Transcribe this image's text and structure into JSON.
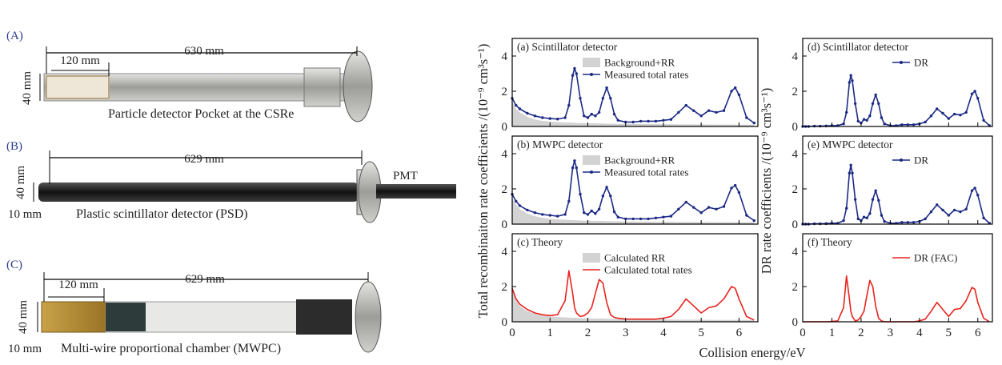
{
  "photos": {
    "a": {
      "label": "(A)",
      "length": "630 mm",
      "window": "120 mm",
      "height": "40 mm",
      "caption": "Particle detector Pocket at the CSRe"
    },
    "b": {
      "label": "(B)",
      "length": "629 mm",
      "height": "40 mm",
      "thickness": "10 mm",
      "pmt": "PMT",
      "caption": "Plastic scintillator detector (PSD)"
    },
    "c": {
      "label": "(C)",
      "window": "120 mm",
      "length": "629 mm",
      "height": "40 mm",
      "thickness": "10 mm",
      "caption": "Multi-wire proportional chamber (MWPC)"
    }
  },
  "shared_axes": {
    "y_left": "Total recombinaiton rate coefficients /(10⁻⁹ cm³s⁻¹)",
    "y_right": "DR rate coefficients /(10⁻⁹ cm³s⁻¹)",
    "x": "Collision energy/eV"
  },
  "chart_data": [
    {
      "type": "line",
      "label": "(a) Scintillator detector",
      "x": [
        0,
        0.1,
        0.2,
        0.4,
        0.6,
        0.8,
        1,
        1.2,
        1.4,
        1.5,
        1.6,
        1.65,
        1.7,
        1.8,
        1.9,
        2,
        2.1,
        2.2,
        2.3,
        2.4,
        2.5,
        2.6,
        2.7,
        2.8,
        3,
        3.2,
        3.4,
        3.6,
        3.8,
        4,
        4.2,
        4.4,
        4.6,
        4.8,
        5,
        5.2,
        5.4,
        5.6,
        5.8,
        5.9,
        6,
        6.2,
        6.4
      ],
      "series": [
        {
          "name": "Background+RR",
          "style": "area",
          "color": "#d3d3d3",
          "values": [
            1.4,
            1.0,
            0.8,
            0.55,
            0.4,
            0.32,
            0.28,
            0.25,
            0.23,
            0.22,
            0.21,
            0.21,
            0.2,
            0.2,
            0.19,
            0.19,
            0.18,
            0.18,
            0.17,
            0.17,
            0.16,
            0.16,
            0.16,
            0.15,
            0.15,
            0.14,
            0.14,
            0.14,
            0.13,
            0.13,
            0.13,
            0.12,
            0.12,
            0.12,
            0.12,
            0.11,
            0.11,
            0.11,
            0.11,
            0.11,
            0.1,
            0.1,
            0.1
          ]
        },
        {
          "name": "Measured total rates",
          "style": "line",
          "markers": true,
          "color": "#1c2a85",
          "values": [
            1.6,
            1.2,
            1.0,
            0.75,
            0.6,
            0.5,
            0.45,
            0.42,
            0.5,
            1.2,
            2.9,
            3.3,
            3.0,
            1.6,
            0.6,
            0.5,
            0.7,
            0.6,
            0.8,
            1.6,
            2.2,
            1.6,
            0.7,
            0.35,
            0.25,
            0.25,
            0.3,
            0.3,
            0.3,
            0.35,
            0.4,
            0.8,
            1.2,
            0.9,
            0.6,
            0.9,
            0.8,
            0.9,
            2.0,
            2.2,
            1.8,
            0.5,
            0.2
          ]
        }
      ],
      "xlim": [
        0,
        6.5
      ],
      "ylim": [
        0,
        5
      ],
      "xticks": [
        0,
        1,
        2,
        3,
        4,
        5,
        6
      ],
      "yticks": [
        0,
        2,
        4
      ]
    },
    {
      "type": "line",
      "label": "(b) MWPC detector",
      "x": [
        0,
        0.1,
        0.2,
        0.4,
        0.6,
        0.8,
        1,
        1.2,
        1.4,
        1.5,
        1.6,
        1.65,
        1.7,
        1.8,
        1.9,
        2,
        2.1,
        2.2,
        2.3,
        2.4,
        2.5,
        2.6,
        2.7,
        2.8,
        3,
        3.2,
        3.4,
        3.6,
        3.8,
        4,
        4.2,
        4.4,
        4.6,
        4.8,
        5,
        5.2,
        5.4,
        5.6,
        5.8,
        5.9,
        6,
        6.2,
        6.4
      ],
      "series": [
        {
          "name": "Background+RR",
          "style": "area",
          "color": "#d3d3d3",
          "values": [
            1.5,
            1.1,
            0.85,
            0.6,
            0.45,
            0.36,
            0.3,
            0.27,
            0.25,
            0.24,
            0.23,
            0.23,
            0.22,
            0.21,
            0.2,
            0.2,
            0.19,
            0.19,
            0.18,
            0.18,
            0.17,
            0.17,
            0.16,
            0.16,
            0.15,
            0.15,
            0.14,
            0.14,
            0.13,
            0.13,
            0.13,
            0.12,
            0.12,
            0.12,
            0.12,
            0.11,
            0.11,
            0.11,
            0.11,
            0.11,
            0.1,
            0.1,
            0.1
          ]
        },
        {
          "name": "Measured total rates",
          "style": "line",
          "markers": true,
          "color": "#1c2a85",
          "values": [
            1.7,
            1.3,
            1.05,
            0.8,
            0.65,
            0.55,
            0.5,
            0.45,
            0.55,
            1.3,
            3.2,
            3.6,
            3.2,
            1.7,
            0.65,
            0.55,
            0.75,
            0.6,
            0.85,
            1.6,
            2.1,
            1.6,
            0.7,
            0.4,
            0.3,
            0.3,
            0.3,
            0.3,
            0.35,
            0.4,
            0.45,
            0.85,
            1.25,
            0.95,
            0.65,
            0.95,
            0.85,
            1.0,
            2.05,
            2.2,
            1.8,
            0.5,
            0.2
          ]
        }
      ],
      "xlim": [
        0,
        6.5
      ],
      "ylim": [
        0,
        5
      ],
      "xticks": [
        0,
        1,
        2,
        3,
        4,
        5,
        6
      ],
      "yticks": [
        0,
        2,
        4
      ]
    },
    {
      "type": "line",
      "label": "(c) Theory",
      "x": [
        0,
        0.1,
        0.2,
        0.4,
        0.6,
        0.8,
        1,
        1.2,
        1.4,
        1.5,
        1.6,
        1.65,
        1.7,
        1.8,
        1.9,
        2,
        2.1,
        2.2,
        2.3,
        2.4,
        2.5,
        2.6,
        2.7,
        2.8,
        3,
        3.2,
        3.4,
        3.6,
        3.8,
        4,
        4.2,
        4.4,
        4.6,
        4.8,
        5,
        5.2,
        5.4,
        5.6,
        5.8,
        5.9,
        6,
        6.2,
        6.4
      ],
      "series": [
        {
          "name": "Calculated RR",
          "style": "area",
          "color": "#d3d3d3",
          "values": [
            1.8,
            1.2,
            0.9,
            0.6,
            0.45,
            0.35,
            0.3,
            0.27,
            0.25,
            0.24,
            0.23,
            0.23,
            0.22,
            0.21,
            0.2,
            0.2,
            0.19,
            0.19,
            0.18,
            0.18,
            0.17,
            0.17,
            0.16,
            0.16,
            0.15,
            0.15,
            0.14,
            0.14,
            0.13,
            0.13,
            0.13,
            0.12,
            0.12,
            0.12,
            0.12,
            0.11,
            0.11,
            0.11,
            0.11,
            0.11,
            0.1,
            0.1,
            0.1
          ]
        },
        {
          "name": "Calculated total rates",
          "style": "line",
          "markers": false,
          "color": "#e8231e",
          "values": [
            1.9,
            1.3,
            1.0,
            0.7,
            0.5,
            0.4,
            0.35,
            0.4,
            1.2,
            2.9,
            1.6,
            0.8,
            0.5,
            0.3,
            0.35,
            0.5,
            0.8,
            1.6,
            2.4,
            2.2,
            1.1,
            0.4,
            0.25,
            0.2,
            0.15,
            0.15,
            0.15,
            0.15,
            0.15,
            0.2,
            0.3,
            0.7,
            1.3,
            0.9,
            0.5,
            0.8,
            0.9,
            1.3,
            2.0,
            1.9,
            1.3,
            0.3,
            0.1
          ]
        }
      ],
      "xlim": [
        0,
        6.5
      ],
      "ylim": [
        0,
        5
      ],
      "xticks": [
        0,
        1,
        2,
        3,
        4,
        5,
        6
      ],
      "yticks": [
        0,
        2,
        4
      ]
    },
    {
      "type": "line",
      "label": "(d) Scintillator detector",
      "x": [
        0,
        0.1,
        0.2,
        0.4,
        0.6,
        0.8,
        1,
        1.2,
        1.4,
        1.5,
        1.6,
        1.65,
        1.7,
        1.8,
        1.9,
        2,
        2.1,
        2.2,
        2.3,
        2.4,
        2.5,
        2.6,
        2.7,
        2.8,
        3,
        3.2,
        3.4,
        3.6,
        3.8,
        4,
        4.2,
        4.4,
        4.6,
        4.8,
        5,
        5.2,
        5.4,
        5.6,
        5.8,
        5.9,
        6,
        6.2,
        6.4
      ],
      "series": [
        {
          "name": "DR",
          "style": "line",
          "markers": true,
          "color": "#1c2a85",
          "values": [
            0,
            0,
            0,
            0.02,
            0.02,
            0.03,
            0.05,
            0.05,
            0.15,
            0.8,
            2.5,
            2.9,
            2.6,
            1.3,
            0.3,
            0.2,
            0.4,
            0.35,
            0.6,
            1.3,
            1.8,
            1.3,
            0.5,
            0.15,
            0.05,
            0.05,
            0.1,
            0.1,
            0.1,
            0.15,
            0.25,
            0.6,
            1.0,
            0.75,
            0.45,
            0.7,
            0.65,
            0.8,
            1.85,
            2.0,
            1.6,
            0.35,
            0.05
          ]
        }
      ],
      "xlim": [
        0,
        6.5
      ],
      "ylim": [
        0,
        5
      ],
      "xticks": [
        0,
        1,
        2,
        3,
        4,
        5,
        6
      ],
      "yticks": [
        0,
        2,
        4
      ]
    },
    {
      "type": "line",
      "label": "(e) MWPC detector",
      "x": [
        0,
        0.1,
        0.2,
        0.4,
        0.6,
        0.8,
        1,
        1.2,
        1.4,
        1.5,
        1.6,
        1.65,
        1.7,
        1.8,
        1.9,
        2,
        2.1,
        2.2,
        2.3,
        2.4,
        2.5,
        2.6,
        2.7,
        2.8,
        3,
        3.2,
        3.4,
        3.6,
        3.8,
        4,
        4.2,
        4.4,
        4.6,
        4.8,
        5,
        5.2,
        5.4,
        5.6,
        5.8,
        5.9,
        6,
        6.2,
        6.4
      ],
      "series": [
        {
          "name": "DR",
          "style": "line",
          "markers": true,
          "color": "#1c2a85",
          "values": [
            0,
            0,
            0,
            0.02,
            0.02,
            0.03,
            0.05,
            0.05,
            0.2,
            0.9,
            2.9,
            3.35,
            2.9,
            1.4,
            0.3,
            0.2,
            0.4,
            0.35,
            0.6,
            1.4,
            1.9,
            1.35,
            0.5,
            0.15,
            0.05,
            0.05,
            0.1,
            0.1,
            0.1,
            0.15,
            0.3,
            0.7,
            1.1,
            0.8,
            0.5,
            0.8,
            0.7,
            0.85,
            1.9,
            2.05,
            1.65,
            0.35,
            0.05
          ]
        }
      ],
      "xlim": [
        0,
        6.5
      ],
      "ylim": [
        0,
        5
      ],
      "xticks": [
        0,
        1,
        2,
        3,
        4,
        5,
        6
      ],
      "yticks": [
        0,
        2,
        4
      ]
    },
    {
      "type": "line",
      "label": "(f) Theory",
      "x": [
        0,
        0.1,
        0.2,
        0.4,
        0.6,
        0.8,
        1,
        1.2,
        1.4,
        1.5,
        1.6,
        1.65,
        1.7,
        1.8,
        1.9,
        2,
        2.1,
        2.2,
        2.3,
        2.4,
        2.5,
        2.6,
        2.7,
        2.8,
        3,
        3.2,
        3.4,
        3.6,
        3.8,
        4,
        4.2,
        4.4,
        4.6,
        4.8,
        5,
        5.2,
        5.4,
        5.6,
        5.8,
        5.9,
        6,
        6.2,
        6.4
      ],
      "series": [
        {
          "name": "DR (FAC)",
          "style": "line",
          "markers": false,
          "color": "#e8231e",
          "values": [
            0,
            0,
            0,
            0,
            0,
            0,
            0.02,
            0.05,
            0.8,
            2.6,
            1.3,
            0.6,
            0.3,
            0.05,
            0.1,
            0.3,
            0.6,
            1.5,
            2.35,
            2.0,
            0.9,
            0.2,
            0.05,
            0,
            0,
            0,
            0,
            0,
            0,
            0.05,
            0.15,
            0.6,
            1.1,
            0.7,
            0.3,
            0.7,
            0.75,
            1.2,
            1.95,
            1.85,
            1.1,
            0.2,
            0
          ]
        }
      ],
      "xlim": [
        0,
        6.5
      ],
      "ylim": [
        0,
        5
      ],
      "xticks": [
        0,
        1,
        2,
        3,
        4,
        5,
        6
      ],
      "yticks": [
        0,
        2,
        4
      ]
    }
  ]
}
